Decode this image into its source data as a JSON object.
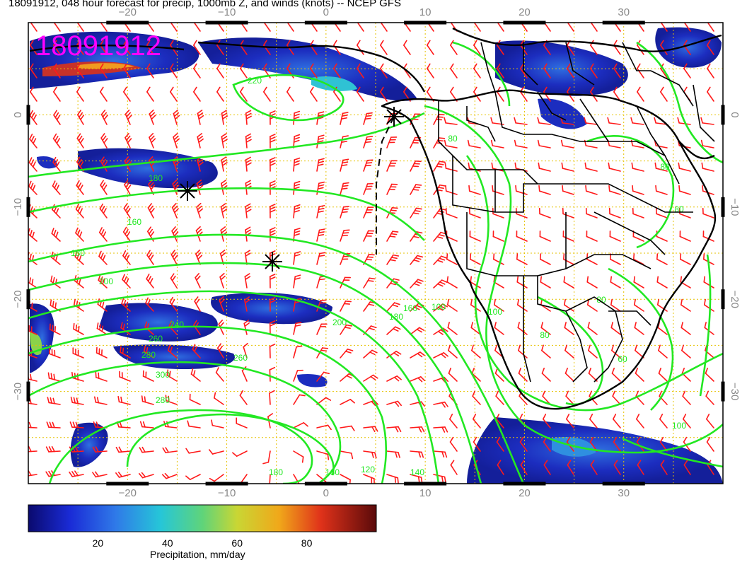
{
  "title": "18091912, 048 hour forecast for precip, 1000mb Z, and winds (knots) -- NCEP GFS",
  "stamp": "18091912",
  "axes": {
    "lon_ticks": [
      "−20",
      "−10",
      "0",
      "10",
      "20",
      "30"
    ],
    "lon_values": [
      -20,
      -10,
      0,
      10,
      20,
      30
    ],
    "lat_ticks": [
      "0",
      "−10",
      "−20",
      "−30"
    ],
    "lat_values": [
      0,
      -10,
      -20,
      -30
    ],
    "lon_range": [
      -30,
      40
    ],
    "lat_range": [
      -40,
      10
    ]
  },
  "colorbar": {
    "title": "Precipitation, mm/day",
    "ticks": [
      "20",
      "40",
      "60",
      "80"
    ],
    "tick_values": [
      20,
      40,
      60,
      80
    ],
    "range": [
      0,
      100
    ]
  },
  "contour_labels": [
    "160",
    "180",
    "200",
    "220",
    "240",
    "260",
    "280",
    "300",
    "100",
    "80",
    "60",
    "120",
    "140"
  ],
  "colors": {
    "coast": "#000000",
    "contour": "#22e822",
    "wind": "#ff1a1a",
    "grid": "#e6c200",
    "stamp": "#ff00ff"
  }
}
